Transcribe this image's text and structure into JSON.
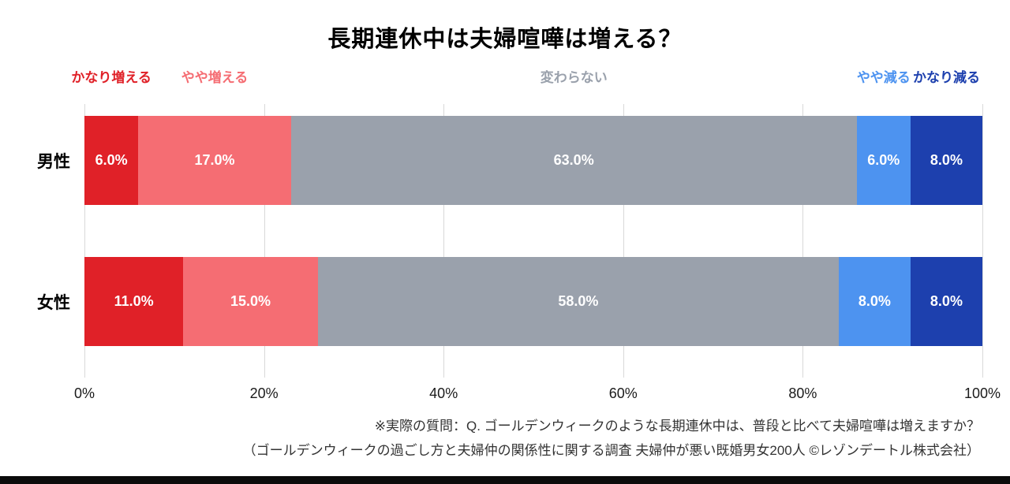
{
  "title": "長期連休中は夫婦喧嘩は増える？",
  "chart_data": {
    "type": "bar",
    "subtype": "stacked-100-horizontal",
    "title": "長期連休中は夫婦喧嘩は増える？",
    "categories": [
      "男性",
      "女性"
    ],
    "series": [
      {
        "name": "かなり増える",
        "color": "#e02128",
        "values": [
          6.0,
          11.0
        ]
      },
      {
        "name": "やや増える",
        "color": "#f56d73",
        "values": [
          17.0,
          15.0
        ]
      },
      {
        "name": "変わらない",
        "color": "#9aa1ac",
        "values": [
          63.0,
          58.0
        ]
      },
      {
        "name": "やや減る",
        "color": "#4d93f0",
        "values": [
          6.0,
          8.0
        ]
      },
      {
        "name": "かなり減る",
        "color": "#1d40ae",
        "values": [
          8.0,
          8.0
        ]
      }
    ],
    "x_ticks": [
      "0%",
      "20%",
      "40%",
      "60%",
      "80%",
      "100%"
    ],
    "xlim": [
      0,
      100
    ],
    "value_suffix": "%",
    "value_decimals": 1,
    "grid": true,
    "legend_position": "top",
    "bar_label_color": "#ffffff",
    "gridline_color": "#d9d9d9"
  },
  "footnotes": [
    "※実際の質問：Q. ゴールデンウィークのような長期連休中は、普段と比べて夫婦喧嘩は増えますか？",
    "（ゴールデンウィークの過ごし方と夫婦仲の関係性に関する調査 夫婦仲が悪い既婚男女200人 ©レゾンデートル株式会社）"
  ]
}
